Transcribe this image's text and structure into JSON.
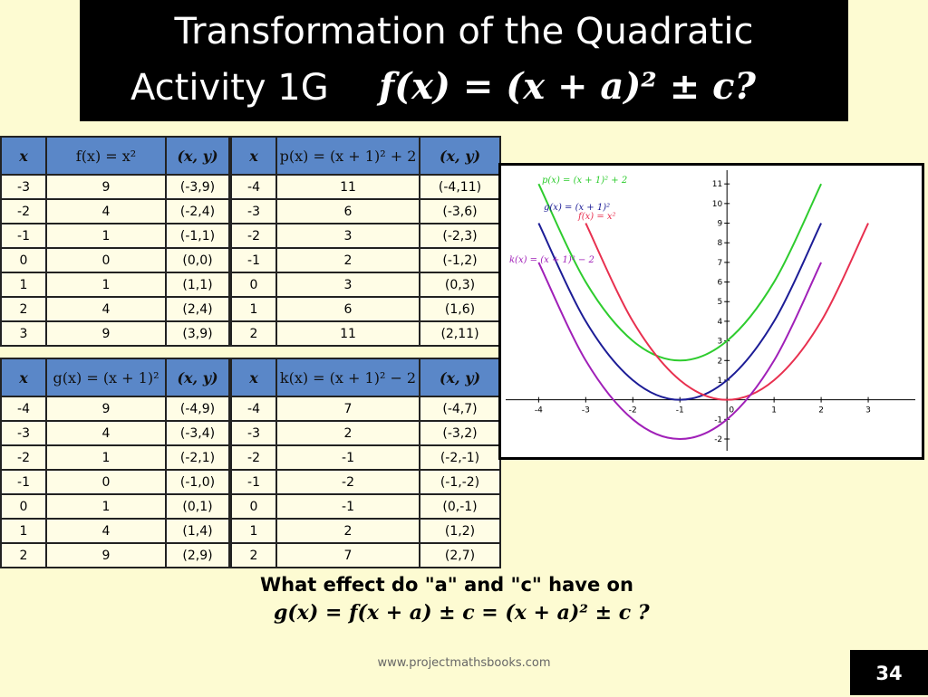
{
  "header": {
    "title_line1": "Transformation of  the Quadratic",
    "title_line2": "Activity 1G",
    "title_formula": "f(x) = (x + a)² ± c?"
  },
  "tables": [
    {
      "headers": [
        "x",
        "f(x) = x²",
        "(x, y)"
      ],
      "rows": [
        [
          -3,
          9,
          "(-3,9)"
        ],
        [
          -2,
          4,
          "(-2,4)"
        ],
        [
          -1,
          1,
          "(-1,1)"
        ],
        [
          0,
          0,
          "(0,0)"
        ],
        [
          1,
          1,
          "(1,1)"
        ],
        [
          2,
          4,
          "(2,4)"
        ],
        [
          3,
          9,
          "(3,9)"
        ]
      ]
    },
    {
      "headers": [
        "x",
        "p(x) = (x + 1)² + 2",
        "(x, y)"
      ],
      "rows": [
        [
          -4,
          11,
          "(-4,11)"
        ],
        [
          -3,
          6,
          "(-3,6)"
        ],
        [
          -2,
          3,
          "(-2,3)"
        ],
        [
          -1,
          2,
          "(-1,2)"
        ],
        [
          0,
          3,
          "(0,3)"
        ],
        [
          1,
          6,
          "(1,6)"
        ],
        [
          2,
          11,
          "(2,11)"
        ]
      ]
    },
    {
      "headers": [
        "x",
        "g(x) = (x + 1)²",
        "(x, y)"
      ],
      "rows": [
        [
          -4,
          9,
          "(-4,9)"
        ],
        [
          -3,
          4,
          "(-3,4)"
        ],
        [
          -2,
          1,
          "(-2,1)"
        ],
        [
          -1,
          0,
          "(-1,0)"
        ],
        [
          0,
          1,
          "(0,1)"
        ],
        [
          1,
          4,
          "(1,4)"
        ],
        [
          2,
          9,
          "(2,9)"
        ]
      ]
    },
    {
      "headers": [
        "x",
        "k(x) = (x + 1)² − 2",
        "(x, y)"
      ],
      "rows": [
        [
          -4,
          7,
          "(-4,7)"
        ],
        [
          -3,
          2,
          "(-3,2)"
        ],
        [
          -2,
          -1,
          "(-2,-1)"
        ],
        [
          -1,
          -2,
          "(-1,-2)"
        ],
        [
          0,
          -1,
          "(0,-1)"
        ],
        [
          1,
          2,
          "(1,2)"
        ],
        [
          2,
          7,
          "(2,7)"
        ]
      ]
    }
  ],
  "graph": {
    "xticks": [
      -4,
      -3,
      -2,
      -1,
      0,
      1,
      2,
      3
    ],
    "yticks": [
      -2,
      -1,
      1,
      2,
      3,
      4,
      5,
      6,
      7,
      8,
      9,
      10,
      11
    ],
    "xlim": [
      -4.7,
      4
    ],
    "ylim": [
      -2.6,
      11.7
    ],
    "curves": [
      {
        "label": "p(x) = (x + 1)² + 2",
        "color": "#2ecc2e",
        "table": 1
      },
      {
        "label": "g(x) = (x + 1)²",
        "color": "#1c1c96",
        "table": 2
      },
      {
        "label": "f(x) = x²",
        "color": "#e8304f",
        "table": 0
      },
      {
        "label": "k(x) = (x + 1)² − 2",
        "color": "#a020b8",
        "table": 3
      }
    ]
  },
  "question": "What effect do \"a\" and \"c\" have on",
  "formula": "g(x) = f(x + a) ± c = (x + a)² ± c ?",
  "footer": "www.projectmathsbooks.com",
  "page_number": "34"
}
